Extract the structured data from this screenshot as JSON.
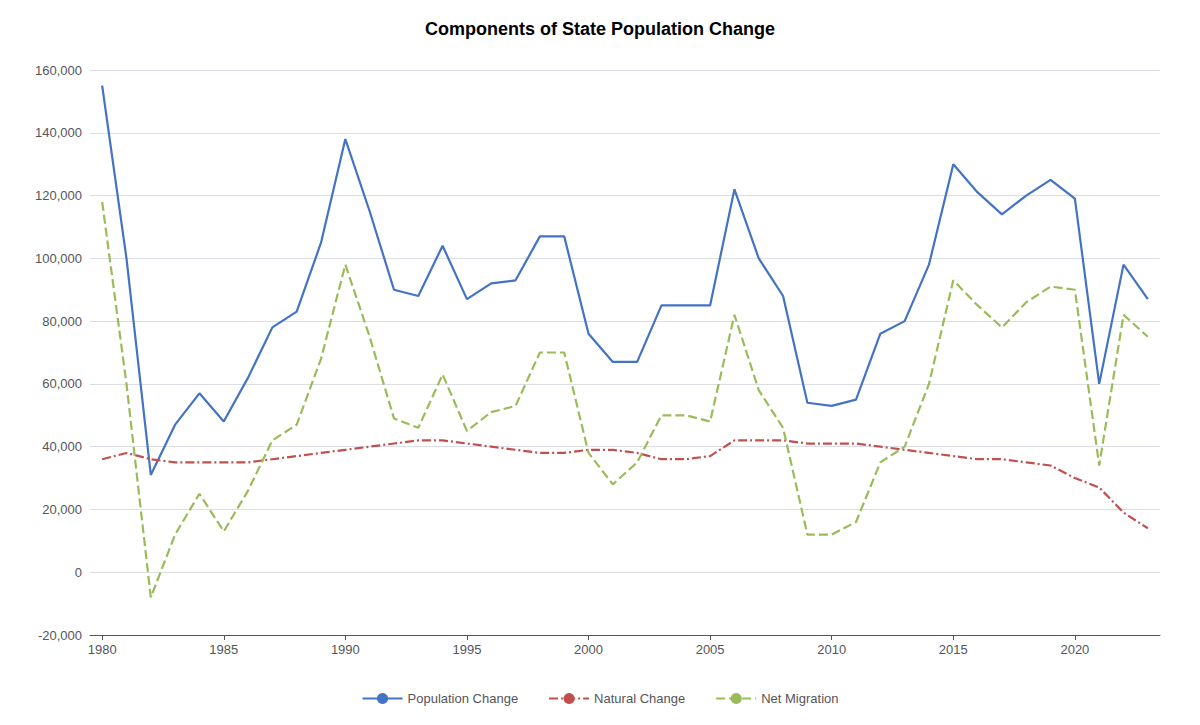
{
  "chart_data": {
    "type": "line",
    "title": "Components of State Population Change",
    "x": [
      1980,
      1981,
      1982,
      1983,
      1984,
      1985,
      1986,
      1987,
      1988,
      1989,
      1990,
      1991,
      1992,
      1993,
      1994,
      1995,
      1996,
      1997,
      1998,
      1999,
      2000,
      2001,
      2002,
      2003,
      2004,
      2005,
      2006,
      2007,
      2008,
      2009,
      2010,
      2011,
      2012,
      2013,
      2014,
      2015,
      2016,
      2017,
      2018,
      2019,
      2020,
      2021,
      2022,
      2023
    ],
    "series": [
      {
        "name": "Population Change",
        "color": "#4472C4",
        "line_style": "solid",
        "values": [
          155000,
          100000,
          31000,
          47000,
          57000,
          48000,
          62000,
          78000,
          83000,
          105000,
          138000,
          115000,
          90000,
          88000,
          104000,
          87000,
          92000,
          93000,
          107000,
          107000,
          76000,
          67000,
          67000,
          85000,
          85000,
          85000,
          122000,
          100000,
          88000,
          54000,
          53000,
          55000,
          76000,
          80000,
          98000,
          130000,
          121000,
          114000,
          120000,
          125000,
          119000,
          60000,
          98000,
          87000
        ]
      },
      {
        "name": "Natural Change",
        "color": "#C0504D",
        "line_style": "dashdot",
        "values": [
          36000,
          38000,
          36000,
          35000,
          35000,
          35000,
          35000,
          36000,
          37000,
          38000,
          39000,
          40000,
          41000,
          42000,
          42000,
          41000,
          40000,
          39000,
          38000,
          38000,
          39000,
          39000,
          38000,
          36000,
          36000,
          37000,
          42000,
          42000,
          42000,
          41000,
          41000,
          41000,
          40000,
          39000,
          38000,
          37000,
          36000,
          36000,
          35000,
          34000,
          30000,
          27000,
          19000,
          14000
        ]
      },
      {
        "name": "Net Migration",
        "color": "#9BBB59",
        "line_style": "dashed",
        "values": [
          118000,
          60000,
          -8000,
          12000,
          25000,
          13000,
          26000,
          42000,
          47000,
          68000,
          98000,
          75000,
          49000,
          46000,
          63000,
          45000,
          51000,
          53000,
          70000,
          70000,
          38000,
          28000,
          35000,
          50000,
          50000,
          48000,
          82000,
          58000,
          46000,
          12000,
          12000,
          16000,
          35000,
          40000,
          60000,
          93000,
          85000,
          78000,
          86000,
          91000,
          90000,
          34000,
          82000,
          75000
        ]
      }
    ],
    "xlim": [
      1979.5,
      2023.5
    ],
    "xticks": [
      1980,
      1985,
      1990,
      1995,
      2000,
      2005,
      2010,
      2015,
      2020
    ],
    "ylim": [
      -20000,
      160000
    ],
    "yticks": [
      {
        "value": -20000,
        "label": "-20,000"
      },
      0,
      {
        "value": 20000,
        "label": "20,000"
      },
      {
        "value": 40000,
        "label": "40,000"
      },
      {
        "value": 60000,
        "label": "60,000"
      },
      {
        "value": 80000,
        "label": "80,000"
      },
      {
        "value": 100000,
        "label": "100,000"
      },
      {
        "value": 120000,
        "label": "120,000"
      },
      {
        "value": 140000,
        "label": "140,000"
      },
      {
        "value": 160000,
        "label": "160,000"
      }
    ],
    "grid": true,
    "legend": "bottom"
  }
}
